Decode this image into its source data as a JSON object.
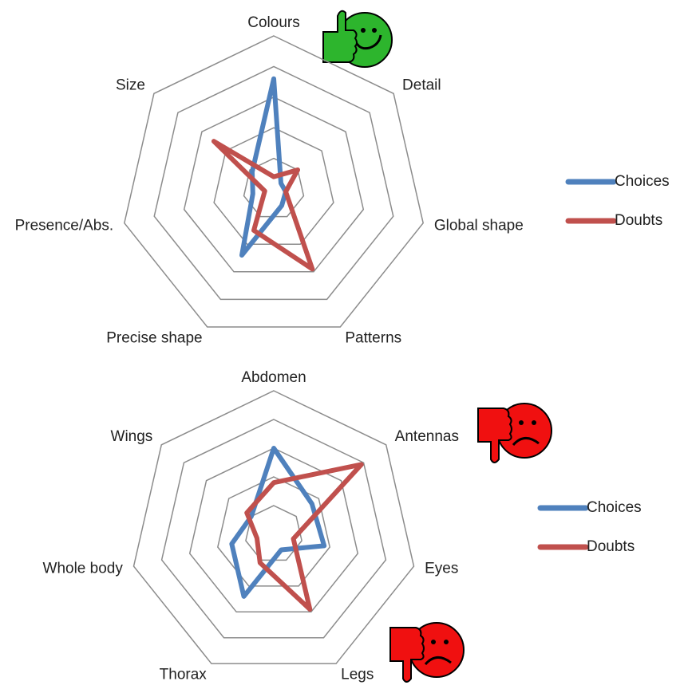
{
  "chart_data": [
    {
      "type": "radar",
      "categories": [
        "Colours",
        "Detail",
        "Global shape",
        "Patterns",
        "Precise shape",
        "Presence/Abs.",
        "Size"
      ],
      "series": [
        {
          "name": "Choices",
          "color": "#4f81bd",
          "values": [
            3.6,
            0.3,
            0.4,
            0.6,
            2.4,
            0.7,
            0.9
          ]
        },
        {
          "name": "Doubts",
          "color": "#c0504d",
          "values": [
            0.4,
            1.0,
            0.4,
            2.9,
            1.5,
            0.3,
            2.5
          ]
        }
      ],
      "ylim": [
        0,
        5
      ],
      "yticks": [
        0,
        1,
        2,
        3,
        4,
        5
      ],
      "grid": true,
      "legend": "right"
    },
    {
      "type": "radar",
      "categories": [
        "Abdomen",
        "Antennas",
        "Eyes",
        "Legs",
        "Thorax",
        "Whole body",
        "Wings"
      ],
      "series": [
        {
          "name": "Choices",
          "color": "#4f81bd",
          "values": [
            3.0,
            1.7,
            1.8,
            0.6,
            2.4,
            1.5,
            1.0
          ]
        },
        {
          "name": "Doubts",
          "color": "#c0504d",
          "values": [
            1.8,
            3.9,
            0.7,
            2.9,
            1.1,
            0.6,
            1.2
          ]
        }
      ],
      "ylim": [
        0,
        5
      ],
      "yticks": [
        0,
        1,
        2,
        3,
        4,
        5
      ],
      "grid": true,
      "legend": "right"
    }
  ]
}
